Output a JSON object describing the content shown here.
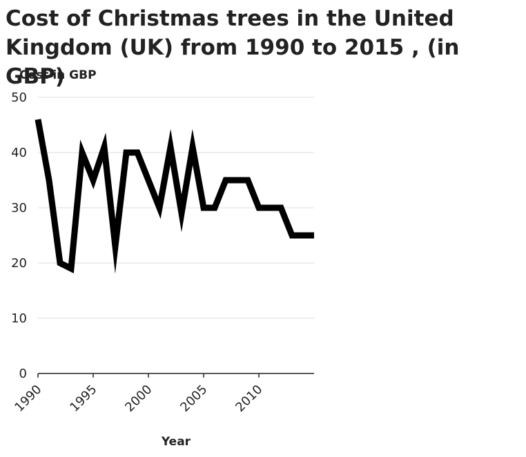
{
  "chart_data": {
    "type": "line",
    "title": "Cost of Christmas trees in the United Kingdom (UK) from 1990 to 2015 , (in GBP)",
    "xlabel": "Year",
    "ylabel": "Cost in GBP",
    "xlim": [
      1990,
      2015
    ],
    "ylim": [
      0,
      50
    ],
    "x_ticks": [
      1990,
      1995,
      2000,
      2005,
      2010
    ],
    "y_ticks": [
      0,
      10,
      20,
      30,
      40,
      50
    ],
    "grid": true,
    "line_color": "#000000",
    "series": [
      {
        "x": [
          1990,
          1991,
          1992,
          1993,
          1994,
          1995,
          1996,
          1997,
          1998,
          1999,
          2000,
          2001,
          2002,
          2003,
          2004,
          2005,
          2006,
          2007,
          2008,
          2009,
          2010,
          2011,
          2012,
          2013,
          2014,
          2015
        ],
        "values": [
          46,
          35,
          20,
          19,
          40,
          35,
          41,
          23,
          40,
          40,
          35,
          30,
          41,
          29,
          41,
          30,
          30,
          35,
          35,
          35,
          30,
          30,
          30,
          25,
          25,
          25
        ]
      }
    ]
  }
}
